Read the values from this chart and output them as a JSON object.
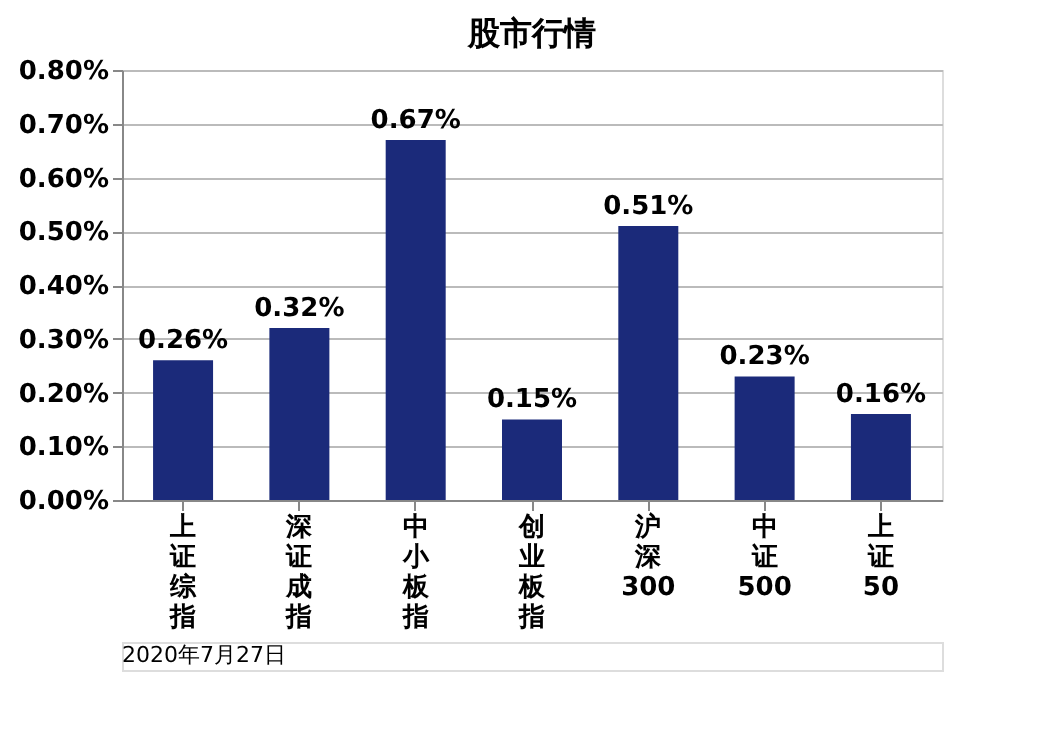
{
  "chart_data": {
    "type": "bar",
    "title": "股市行情",
    "categories": [
      "上证综指",
      "深证成指",
      "中小板指",
      "创业板指",
      "沪深300",
      "中证500",
      "上证50"
    ],
    "values": [
      0.26,
      0.32,
      0.67,
      0.15,
      0.51,
      0.23,
      0.16
    ],
    "value_labels": [
      "0.26%",
      "0.32%",
      "0.67%",
      "0.15%",
      "0.51%",
      "0.23%",
      "0.16%"
    ],
    "color": "#1b2a7a",
    "ylim": [
      0,
      0.8
    ],
    "yticks": [
      {
        "value": 0,
        "label": "0.00%"
      },
      {
        "value": 0.1,
        "label": "0.10%"
      },
      {
        "value": 0.2,
        "label": "0.20%"
      },
      {
        "value": 0.3,
        "label": "0.30%"
      },
      {
        "value": 0.4,
        "label": "0.40%"
      },
      {
        "value": 0.5,
        "label": "0.50%"
      },
      {
        "value": 0.6,
        "label": "0.60%"
      },
      {
        "value": 0.7,
        "label": "0.70%"
      },
      {
        "value": 0.8,
        "label": "0.80%"
      }
    ],
    "grid": "y",
    "legend": false,
    "annotations": [
      "2020年7月27日"
    ]
  }
}
